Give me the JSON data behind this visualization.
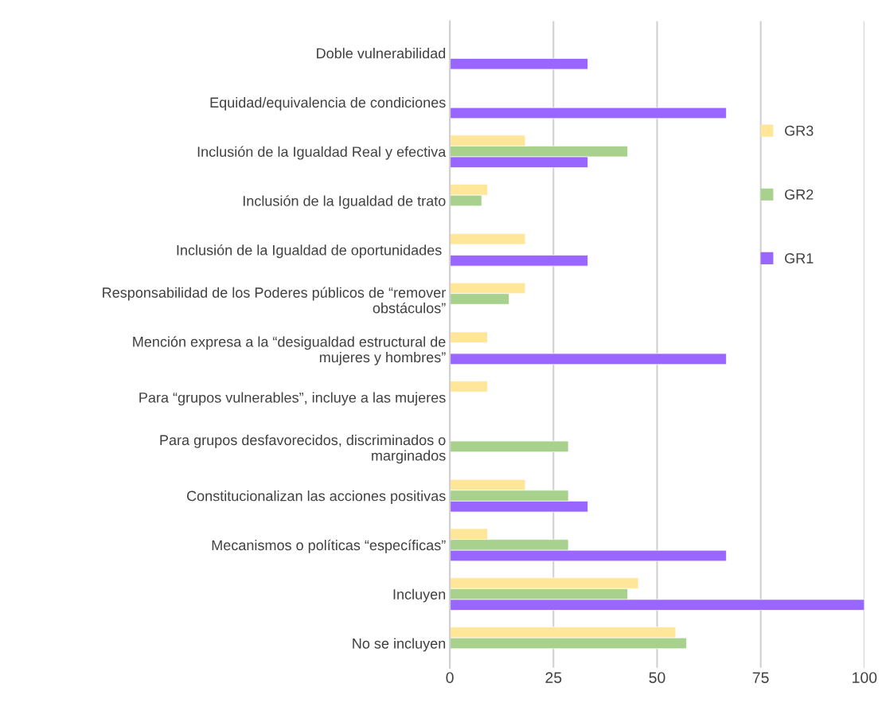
{
  "chart_data": {
    "type": "bar",
    "orientation": "horizontal",
    "categories": [
      "Doble vulnerabilidad",
      "Equidad/equivalencia de condiciones",
      "Inclusión de la Igualdad Real y efectiva",
      "Inclusión de la Igualdad de trato",
      "Inclusión de la Igualdad de oportunidades ",
      "Responsabilidad de los Poderes públicos de “remover obstáculos”",
      "Mención expresa a la “desigualdad estructural de mujeres y hombres”",
      "Para “grupos vulnerables”, incluye a las mujeres",
      "Para grupos desfavorecidos, discriminados o marginados",
      "Constitucionalizan las acciones positivas",
      "Mecanismos o políticas “específicas”",
      "Incluyen",
      "No se incluyen"
    ],
    "series": [
      {
        "name": "GR3",
        "color": "#ffe699",
        "values": [
          null,
          null,
          18.2,
          9.1,
          18.2,
          18.2,
          9.1,
          9.1,
          null,
          18.2,
          9.1,
          45.5,
          54.5
        ]
      },
      {
        "name": "GR2",
        "color": "#a9d18e",
        "values": [
          null,
          null,
          42.9,
          7.7,
          null,
          14.3,
          null,
          null,
          28.6,
          28.6,
          28.6,
          42.9,
          57.1
        ]
      },
      {
        "name": "GR1",
        "color": "#9966ff",
        "values": [
          33.3,
          66.7,
          33.3,
          null,
          33.3,
          null,
          66.7,
          null,
          null,
          33.3,
          66.7,
          100,
          null
        ]
      }
    ],
    "xlim": [
      0,
      100
    ],
    "xticks": [
      0,
      25,
      50,
      75,
      100
    ],
    "grid": "x",
    "legend": "right"
  }
}
